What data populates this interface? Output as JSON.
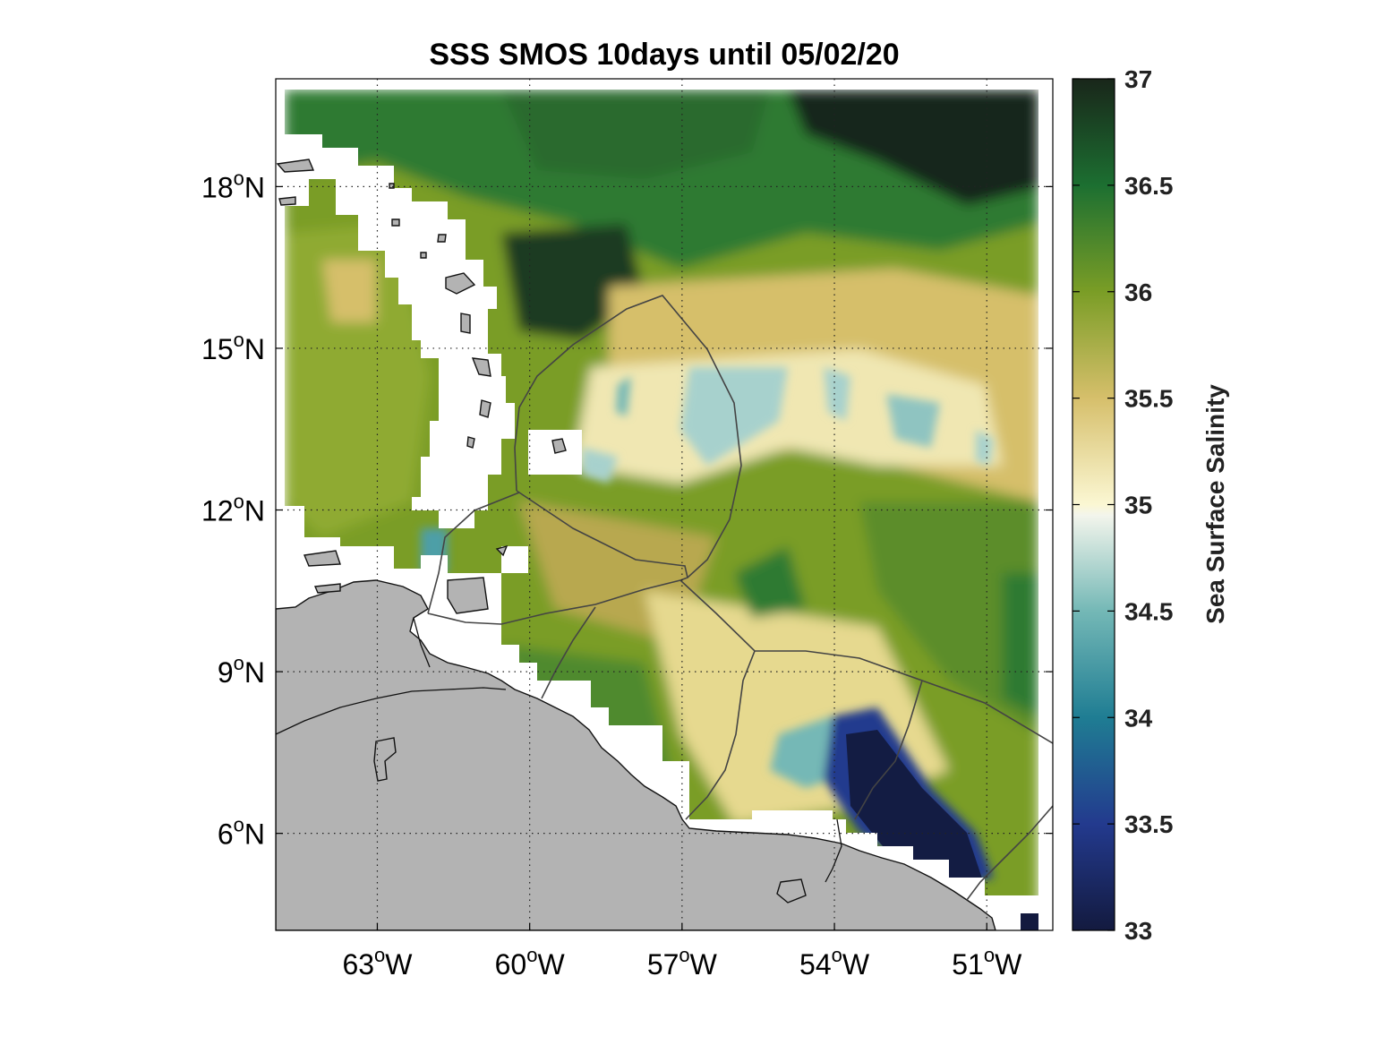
{
  "title": "SSS SMOS 10days until 05/02/20",
  "map": {
    "lon_range": [
      -65,
      -49.7
    ],
    "lat_range": [
      4.2,
      20
    ],
    "lon_ticks": [
      {
        "value": -63,
        "deg": "63",
        "hemi": "W"
      },
      {
        "value": -60,
        "deg": "60",
        "hemi": "W"
      },
      {
        "value": -57,
        "deg": "57",
        "hemi": "W"
      },
      {
        "value": -54,
        "deg": "54",
        "hemi": "W"
      },
      {
        "value": -51,
        "deg": "51",
        "hemi": "W"
      }
    ],
    "lat_ticks": [
      {
        "value": 18,
        "deg": "18",
        "hemi": "N"
      },
      {
        "value": 15,
        "deg": "15",
        "hemi": "N"
      },
      {
        "value": 12,
        "deg": "12",
        "hemi": "N"
      },
      {
        "value": 9,
        "deg": "9",
        "hemi": "N"
      },
      {
        "value": 6,
        "deg": "6",
        "hemi": "N"
      }
    ],
    "degree_symbol": "o",
    "land_color": "#b3b3b3",
    "no_data_color": "#ffffff"
  },
  "colorbar": {
    "label": "Sea Surface Salinity",
    "range": [
      33,
      37
    ],
    "ticks": [
      "37",
      "36.5",
      "36",
      "35.5",
      "35",
      "34.5",
      "34",
      "33.5",
      "33"
    ],
    "stops": [
      {
        "value": 33.0,
        "color": "#131a3f"
      },
      {
        "value": 33.5,
        "color": "#233a8e"
      },
      {
        "value": 34.0,
        "color": "#1f7d93"
      },
      {
        "value": 34.5,
        "color": "#74b8b6"
      },
      {
        "value": 34.95,
        "color": "#f3f5ec"
      },
      {
        "value": 35.0,
        "color": "#fbf7d3"
      },
      {
        "value": 35.5,
        "color": "#d6bf6b"
      },
      {
        "value": 36.0,
        "color": "#7a9d26"
      },
      {
        "value": 36.5,
        "color": "#1c6f31"
      },
      {
        "value": 37.0,
        "color": "#19261a"
      }
    ]
  }
}
